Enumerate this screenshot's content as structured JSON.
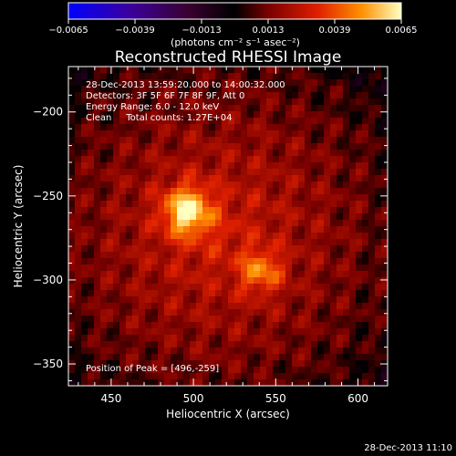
{
  "chart_data": {
    "type": "heatmap",
    "title": "Reconstructed RHESSI Image",
    "xlabel": "Heliocentric X (arcsec)",
    "ylabel": "Heliocentric Y (arcsec)",
    "xlim": [
      424,
      618
    ],
    "ylim": [
      -363,
      -173
    ],
    "x_ticks": [
      450,
      500,
      550,
      600
    ],
    "y_ticks": [
      -350,
      -300,
      -250,
      -200
    ],
    "colorbar": {
      "range": [
        -0.0065,
        0.0065
      ],
      "tick_values": [
        -0.0065,
        -0.0039,
        -0.0013,
        0.0013,
        0.0039,
        0.0065
      ],
      "tick_labels": [
        "−0.0065",
        "−0.0039",
        "−0.0013",
        "0.0013",
        "0.0039",
        "0.0065"
      ],
      "unit_label": "(photons cm⁻² s⁻¹ asec⁻²)"
    },
    "annotations": [
      "28-Dec-2013 13:59:20.000 to 14:00:32.000",
      "Detectors: 3F 5F 6F 7F 8F 9F, Att 0",
      "Energy Range: 6.0 - 12.0 keV",
      "Clean     Total counts: 1.27E+04"
    ],
    "peak_label": "Position of Peak = [496,-259]",
    "sources": [
      {
        "x": 496,
        "y": -259,
        "peak": 0.0065,
        "sigma": 10
      },
      {
        "x": 541,
        "y": -295,
        "peak": 0.0048,
        "sigma": 9
      }
    ],
    "background_level": 0.0022,
    "timestamp": "28-Dec-2013 11:10"
  }
}
